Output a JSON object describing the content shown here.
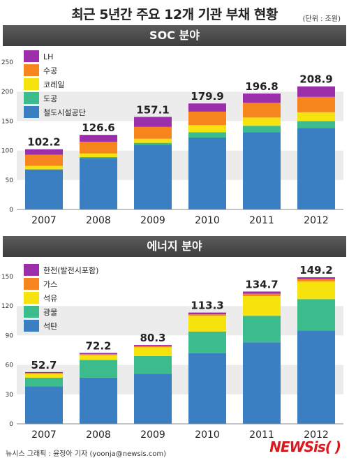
{
  "header": {
    "title": "최근 5년간 주요 12개 기관 부채 현황",
    "unit": "(단위 : 조원)"
  },
  "footer": {
    "credit": "뉴시스 그래픽 : 윤정아 기자 (yoonja@newsis.com)",
    "logo": "NEWSis(  )"
  },
  "chart_data": [
    {
      "type": "bar",
      "stacked": true,
      "title": "SOC 분야",
      "categories": [
        "2007",
        "2008",
        "2009",
        "2010",
        "2011",
        "2012"
      ],
      "ylim": [
        0,
        250
      ],
      "yticks": [
        0,
        50,
        100,
        150,
        200,
        250
      ],
      "grid": "horizontal bands",
      "legend_position": "top-left",
      "series": [
        {
          "name": "철도시설공단",
          "color": "#3a7fc1",
          "values": [
            68,
            87,
            110,
            122,
            131,
            138
          ]
        },
        {
          "name": "도공",
          "color": "#3cbc8c",
          "values": [
            0,
            2,
            3,
            9,
            11,
            12
          ]
        },
        {
          "name": "코레일",
          "color": "#f6e20c",
          "values": [
            6,
            6,
            7,
            12,
            14,
            15
          ]
        },
        {
          "name": "수공",
          "color": "#f7851e",
          "values": [
            19,
            20,
            20,
            23,
            25,
            26
          ]
        },
        {
          "name": "LH",
          "color": "#9a2fa9",
          "values": [
            9.2,
            11.6,
            17.1,
            13.9,
            15.8,
            17.9
          ]
        }
      ],
      "totals": [
        102.2,
        126.6,
        157.1,
        179.9,
        196.8,
        208.9
      ],
      "total_labels": [
        "102.2",
        "126.6",
        "157.1",
        "179.9",
        "196.8",
        "208.9"
      ]
    },
    {
      "type": "bar",
      "stacked": true,
      "title": "에너지 분야",
      "categories": [
        "2007",
        "2008",
        "2009",
        "2010",
        "2011",
        "2012"
      ],
      "ylim": [
        0,
        150
      ],
      "yticks": [
        0,
        30,
        60,
        90,
        120,
        150
      ],
      "grid": "horizontal bands",
      "legend_position": "top-left",
      "series": [
        {
          "name": "석탄",
          "color": "#3a7fc1",
          "values": [
            38,
            47,
            51,
            72,
            83,
            95
          ]
        },
        {
          "name": "광물",
          "color": "#3cbc8c",
          "values": [
            9,
            18,
            18,
            22,
            27,
            32
          ]
        },
        {
          "name": "석유",
          "color": "#f6e20c",
          "values": [
            4,
            5,
            9,
            16,
            20,
            18
          ]
        },
        {
          "name": "가스",
          "color": "#f7851e",
          "values": [
            0.8,
            1.0,
            1.1,
            1.5,
            2.5,
            2.5
          ]
        },
        {
          "name": "한전(발전시포함)",
          "color": "#9a2fa9",
          "values": [
            0.9,
            1.2,
            1.2,
            1.8,
            2.2,
            1.7
          ]
        }
      ],
      "totals": [
        52.7,
        72.2,
        80.3,
        113.3,
        134.7,
        149.2
      ],
      "total_labels": [
        "52.7",
        "72.2",
        "80.3",
        "113.3",
        "134.7",
        "149.2"
      ]
    }
  ]
}
